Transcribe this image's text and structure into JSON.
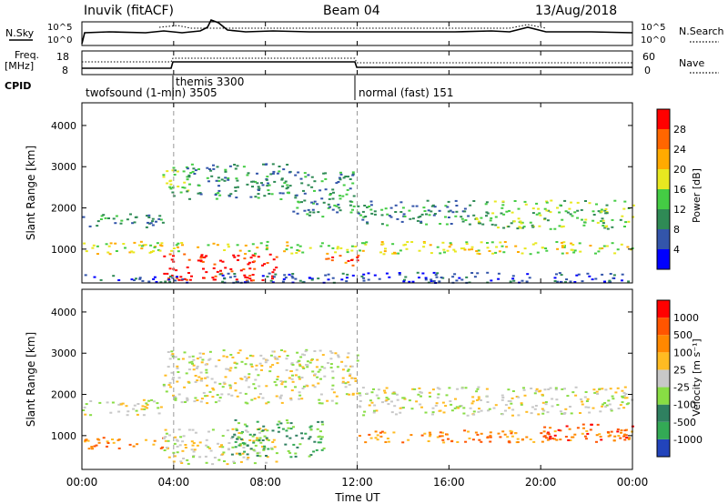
{
  "header": {
    "station": "Inuvik (fitACF)",
    "beam": "Beam 04",
    "date": "13/Aug/2018"
  },
  "top_panels": {
    "left_labels": {
      "nsky": "N.Sky",
      "freq_line1": "Freq.",
      "freq_line2": "[MHz]",
      "cpid": "CPID"
    },
    "right_labels": {
      "nsearch": "N.Search",
      "nave": "Nave"
    },
    "noise_axis_ticks": [
      "10^5",
      "10^0"
    ],
    "freq_axis_ticks": [
      "18",
      "8"
    ],
    "nave_axis_ticks": [
      "60",
      "0"
    ],
    "cpid_segments": [
      {
        "label": "twofsound (1-min) 3505"
      },
      {
        "label": "themis 3300"
      },
      {
        "label": "normal (fast) 151"
      }
    ]
  },
  "colorbars": {
    "power": {
      "label": "Power [dB]",
      "ticks": [
        "28",
        "24",
        "20",
        "16",
        "12",
        "8",
        "4"
      ],
      "colors": [
        "#0000ff",
        "#3355aa",
        "#2f8a55",
        "#44cc44",
        "#e8e820",
        "#ffaa00",
        "#ff6600",
        "#ff0000"
      ]
    },
    "velocity": {
      "label": "Velocity [m s⁻¹]",
      "ticks": [
        "1000",
        "500",
        "100",
        "25",
        "-25",
        "-100",
        "-500",
        "-1000"
      ],
      "colors": [
        "#2244bb",
        "#33aa55",
        "#2f8060",
        "#88dd44",
        "#c8c8c8",
        "#ffbb22",
        "#ff8800",
        "#ff5500",
        "#ff0000"
      ]
    }
  },
  "chart_data": [
    {
      "type": "heatmap",
      "name": "power",
      "ylabel": "Slant Range [km]",
      "yticks": [
        "4000",
        "3000",
        "2000",
        "1000"
      ],
      "ylim": [
        180,
        4550
      ],
      "xlim": [
        0,
        24
      ],
      "grid": false,
      "bands": [
        {
          "x": [
            0,
            3.5
          ],
          "y": [
            1550,
            1900
          ],
          "level": 2
        },
        {
          "x": [
            3.5,
            4.8
          ],
          "y": [
            2300,
            3000
          ],
          "level": 3
        },
        {
          "x": [
            4.5,
            9
          ],
          "y": [
            2200,
            3100
          ],
          "level": 2
        },
        {
          "x": [
            9,
            12
          ],
          "y": [
            1800,
            2900
          ],
          "level": 2
        },
        {
          "x": [
            12,
            17
          ],
          "y": [
            1600,
            2200
          ],
          "level": 2
        },
        {
          "x": [
            17,
            24
          ],
          "y": [
            1500,
            2200
          ],
          "level": 3
        },
        {
          "x": [
            0,
            24
          ],
          "y": [
            900,
            1200
          ],
          "level": 4
        },
        {
          "x": [
            3.5,
            8.5
          ],
          "y": [
            250,
            900
          ],
          "level": 7
        },
        {
          "x": [
            10.5,
            12
          ],
          "y": [
            600,
            900
          ],
          "level": 6
        },
        {
          "x": [
            0,
            24
          ],
          "y": [
            200,
            450
          ],
          "level": 1
        }
      ]
    },
    {
      "type": "heatmap",
      "name": "velocity",
      "ylabel": "Slant Range [km]",
      "yticks": [
        "4000",
        "3000",
        "2000",
        "1000"
      ],
      "ylim": [
        180,
        4550
      ],
      "xlim": [
        0,
        24
      ],
      "grid": false,
      "bands": [
        {
          "x": [
            0,
            3.5
          ],
          "y": [
            1500,
            1900
          ],
          "level": 4
        },
        {
          "x": [
            3.5,
            12
          ],
          "y": [
            1800,
            3100
          ],
          "level": 4
        },
        {
          "x": [
            12,
            17
          ],
          "y": [
            1500,
            2200
          ],
          "level": 4
        },
        {
          "x": [
            17,
            24
          ],
          "y": [
            1500,
            2200
          ],
          "level": 4
        },
        {
          "x": [
            0,
            3.5
          ],
          "y": [
            700,
            1000
          ],
          "level": 6
        },
        {
          "x": [
            3.5,
            8.5
          ],
          "y": [
            300,
            1200
          ],
          "level": 4
        },
        {
          "x": [
            6.5,
            10.5
          ],
          "y": [
            500,
            1400
          ],
          "level": 2
        },
        {
          "x": [
            12,
            24
          ],
          "y": [
            850,
            1150
          ],
          "level": 6
        },
        {
          "x": [
            20,
            24
          ],
          "y": [
            900,
            1300
          ],
          "level": 7
        }
      ]
    }
  ],
  "xaxis": {
    "label": "Time UT",
    "ticks": [
      "00:00",
      "04:00",
      "08:00",
      "12:00",
      "16:00",
      "20:00",
      "00:00"
    ]
  },
  "dashed_markers_hours": [
    4,
    12
  ]
}
